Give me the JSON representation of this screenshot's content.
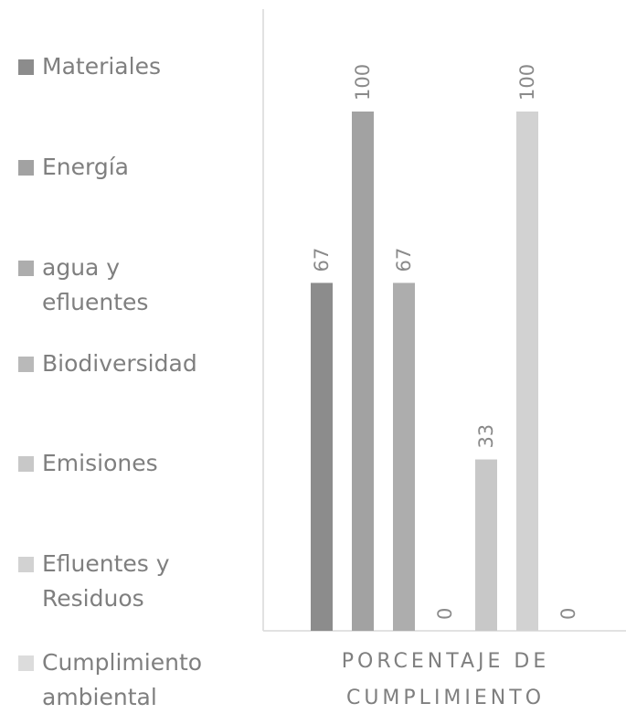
{
  "chart_data": {
    "type": "bar",
    "categories": [
      "PORCENTAJE DE CUMPLIMIENTO"
    ],
    "series": [
      {
        "name": "Materiales",
        "color": "#8c8c8c",
        "values": [
          67
        ]
      },
      {
        "name": "Energía",
        "color": "#a2a2a2",
        "values": [
          100
        ]
      },
      {
        "name": "agua y efluentes",
        "color": "#adadad",
        "values": [
          67
        ]
      },
      {
        "name": "Biodiversidad",
        "color": "#b9b9b9",
        "values": [
          0
        ]
      },
      {
        "name": "Emisiones",
        "color": "#c8c8c8",
        "values": [
          33
        ]
      },
      {
        "name": "Efluentes y Residuos",
        "color": "#d2d2d2",
        "values": [
          100
        ]
      },
      {
        "name": "Cumplimiento ambiental",
        "color": "#dcdcdc",
        "values": [
          0
        ]
      }
    ],
    "ylim": [
      0,
      100
    ]
  }
}
